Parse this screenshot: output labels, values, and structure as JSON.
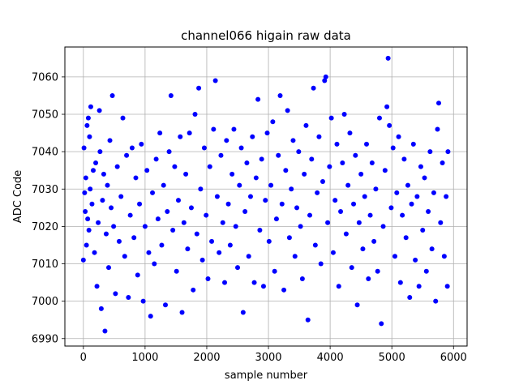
{
  "chart_data": {
    "type": "scatter",
    "title": "channel066 higain raw data",
    "xlabel": "sample number",
    "ylabel": "ADC Code",
    "xlim": [
      -300,
      6220
    ],
    "ylim": [
      6988,
      7068
    ],
    "xticks": [
      0,
      1000,
      2000,
      3000,
      4000,
      5000,
      6000
    ],
    "yticks": [
      6990,
      7000,
      7010,
      7020,
      7030,
      7040,
      7050,
      7060
    ],
    "grid": true,
    "marker_color": "#0000ff",
    "series": [
      {
        "points": [
          [
            0,
            7011
          ],
          [
            10,
            7041
          ],
          [
            20,
            7029
          ],
          [
            30,
            7024
          ],
          [
            40,
            7033
          ],
          [
            50,
            7015
          ],
          [
            60,
            7047
          ],
          [
            70,
            7022
          ],
          [
            80,
            7049
          ],
          [
            90,
            7019
          ],
          [
            100,
            7044
          ],
          [
            110,
            7030
          ],
          [
            120,
            7052
          ],
          [
            140,
            7026
          ],
          [
            160,
            7035
          ],
          [
            180,
            7013
          ],
          [
            200,
            7037
          ],
          [
            220,
            7004
          ],
          [
            240,
            7021
          ],
          [
            260,
            7051
          ],
          [
            270,
            7040
          ],
          [
            290,
            6998
          ],
          [
            310,
            7027
          ],
          [
            330,
            7034
          ],
          [
            350,
            6992
          ],
          [
            370,
            7018
          ],
          [
            390,
            7031
          ],
          [
            410,
            7009
          ],
          [
            430,
            7043
          ],
          [
            450,
            7025
          ],
          [
            470,
            7055
          ],
          [
            490,
            7020
          ],
          [
            520,
            7002
          ],
          [
            550,
            7036
          ],
          [
            580,
            7016
          ],
          [
            610,
            7028
          ],
          [
            640,
            7049
          ],
          [
            670,
            7012
          ],
          [
            700,
            7039
          ],
          [
            730,
            7001
          ],
          [
            760,
            7023
          ],
          [
            790,
            7041
          ],
          [
            820,
            7017
          ],
          [
            850,
            7033
          ],
          [
            880,
            7007
          ],
          [
            910,
            7026
          ],
          [
            940,
            7042
          ],
          [
            970,
            7000
          ],
          [
            1000,
            7020
          ],
          [
            1030,
            7035
          ],
          [
            1060,
            7013
          ],
          [
            1090,
            6996
          ],
          [
            1120,
            7029
          ],
          [
            1150,
            7010
          ],
          [
            1180,
            7038
          ],
          [
            1210,
            7022
          ],
          [
            1240,
            7045
          ],
          [
            1270,
            7015
          ],
          [
            1300,
            7031
          ],
          [
            1330,
            6999
          ],
          [
            1360,
            7024
          ],
          [
            1390,
            7040
          ],
          [
            1420,
            7055
          ],
          [
            1450,
            7019
          ],
          [
            1480,
            7036
          ],
          [
            1510,
            7008
          ],
          [
            1540,
            7027
          ],
          [
            1570,
            7044
          ],
          [
            1600,
            6997
          ],
          [
            1630,
            7021
          ],
          [
            1660,
            7034
          ],
          [
            1690,
            7014
          ],
          [
            1720,
            7045
          ],
          [
            1750,
            7025
          ],
          [
            1780,
            7003
          ],
          [
            1810,
            7050
          ],
          [
            1840,
            7018
          ],
          [
            1870,
            7057
          ],
          [
            1900,
            7030
          ],
          [
            1930,
            7011
          ],
          [
            1960,
            7041
          ],
          [
            1990,
            7023
          ],
          [
            2020,
            7006
          ],
          [
            2050,
            7036
          ],
          [
            2080,
            7016
          ],
          [
            2110,
            7046
          ],
          [
            2140,
            7059
          ],
          [
            2170,
            7028
          ],
          [
            2200,
            7013
          ],
          [
            2230,
            7039
          ],
          [
            2260,
            7021
          ],
          [
            2290,
            7005
          ],
          [
            2320,
            7043
          ],
          [
            2350,
            7026
          ],
          [
            2380,
            7015
          ],
          [
            2410,
            7034
          ],
          [
            2440,
            7046
          ],
          [
            2470,
            7020
          ],
          [
            2500,
            7009
          ],
          [
            2530,
            7031
          ],
          [
            2560,
            7041
          ],
          [
            2590,
            6997
          ],
          [
            2620,
            7024
          ],
          [
            2650,
            7037
          ],
          [
            2680,
            7012
          ],
          [
            2710,
            7028
          ],
          [
            2740,
            7044
          ],
          [
            2770,
            7005
          ],
          [
            2800,
            7033
          ],
          [
            2830,
            7054
          ],
          [
            2860,
            7019
          ],
          [
            2890,
            7038
          ],
          [
            2920,
            7004
          ],
          [
            2950,
            7027
          ],
          [
            2980,
            7045
          ],
          [
            3010,
            7016
          ],
          [
            3040,
            7031
          ],
          [
            3070,
            7048
          ],
          [
            3100,
            7008
          ],
          [
            3130,
            7022
          ],
          [
            3160,
            7039
          ],
          [
            3190,
            7055
          ],
          [
            3220,
            7026
          ],
          [
            3250,
            7003
          ],
          [
            3280,
            7035
          ],
          [
            3310,
            7051
          ],
          [
            3340,
            7017
          ],
          [
            3370,
            7030
          ],
          [
            3400,
            7043
          ],
          [
            3430,
            7012
          ],
          [
            3460,
            7025
          ],
          [
            3490,
            7040
          ],
          [
            3520,
            7020
          ],
          [
            3550,
            7006
          ],
          [
            3580,
            7034
          ],
          [
            3610,
            7047
          ],
          [
            3640,
            6995
          ],
          [
            3670,
            7023
          ],
          [
            3700,
            7038
          ],
          [
            3730,
            7057
          ],
          [
            3760,
            7015
          ],
          [
            3790,
            7029
          ],
          [
            3820,
            7044
          ],
          [
            3850,
            7010
          ],
          [
            3880,
            7032
          ],
          [
            3910,
            7059
          ],
          [
            3930,
            7060
          ],
          [
            3960,
            7021
          ],
          [
            3990,
            7036
          ],
          [
            4020,
            7049
          ],
          [
            4050,
            7013
          ],
          [
            4080,
            7027
          ],
          [
            4110,
            7042
          ],
          [
            4140,
            7004
          ],
          [
            4170,
            7024
          ],
          [
            4200,
            7037
          ],
          [
            4230,
            7050
          ],
          [
            4260,
            7018
          ],
          [
            4290,
            7031
          ],
          [
            4320,
            7045
          ],
          [
            4350,
            7009
          ],
          [
            4380,
            7026
          ],
          [
            4410,
            7039
          ],
          [
            4440,
            6999
          ],
          [
            4470,
            7021
          ],
          [
            4500,
            7034
          ],
          [
            4530,
            7014
          ],
          [
            4560,
            7028
          ],
          [
            4590,
            7042
          ],
          [
            4620,
            7006
          ],
          [
            4650,
            7023
          ],
          [
            4680,
            7037
          ],
          [
            4710,
            7016
          ],
          [
            4740,
            7030
          ],
          [
            4770,
            7008
          ],
          [
            4800,
            7049
          ],
          [
            4830,
            6994
          ],
          [
            4860,
            7020
          ],
          [
            4890,
            7035
          ],
          [
            4920,
            7052
          ],
          [
            4940,
            7065
          ],
          [
            4960,
            7047
          ],
          [
            4990,
            7025
          ],
          [
            5020,
            7041
          ],
          [
            5050,
            7012
          ],
          [
            5080,
            7029
          ],
          [
            5110,
            7044
          ],
          [
            5140,
            7005
          ],
          [
            5170,
            7023
          ],
          [
            5200,
            7038
          ],
          [
            5230,
            7017
          ],
          [
            5260,
            7031
          ],
          [
            5290,
            7001
          ],
          [
            5320,
            7026
          ],
          [
            5350,
            7042
          ],
          [
            5380,
            7011
          ],
          [
            5410,
            7028
          ],
          [
            5440,
            7004
          ],
          [
            5470,
            7036
          ],
          [
            5500,
            7019
          ],
          [
            5530,
            7033
          ],
          [
            5560,
            7008
          ],
          [
            5590,
            7024
          ],
          [
            5620,
            7040
          ],
          [
            5650,
            7014
          ],
          [
            5680,
            7029
          ],
          [
            5710,
            7000
          ],
          [
            5740,
            7046
          ],
          [
            5760,
            7053
          ],
          [
            5790,
            7021
          ],
          [
            5820,
            7037
          ],
          [
            5850,
            7012
          ],
          [
            5880,
            7028
          ],
          [
            5900,
            7004
          ],
          [
            5910,
            7040
          ]
        ]
      }
    ]
  }
}
